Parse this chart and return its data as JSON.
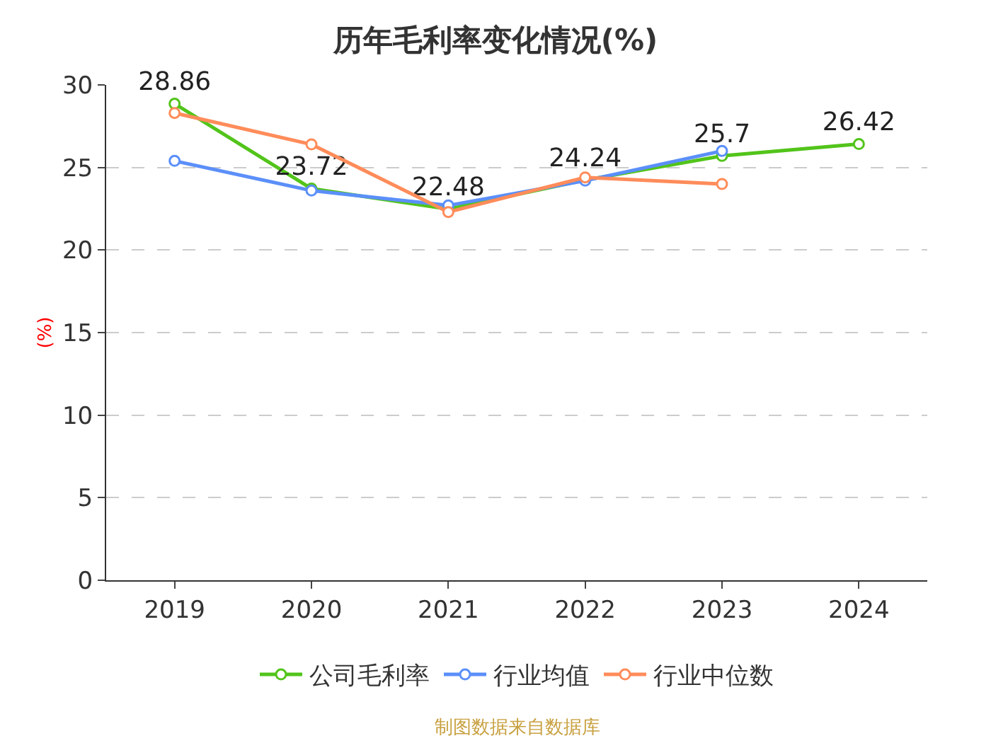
{
  "chart_data": {
    "type": "line",
    "title": "历年毛利率变化情况(%)",
    "ylabel": "(%)",
    "categories": [
      "2019",
      "2020",
      "2021",
      "2022",
      "2023",
      "2024"
    ],
    "series": [
      {
        "name": "公司毛利率",
        "color": "#52c41a",
        "values": [
          28.86,
          23.72,
          22.48,
          24.24,
          25.7,
          26.42
        ],
        "value_labels": [
          "28.86",
          "23.72",
          "22.48",
          "24.24",
          "25.7",
          "26.42"
        ]
      },
      {
        "name": "行业均值",
        "color": "#5b8ff9",
        "values": [
          25.4,
          23.6,
          22.7,
          24.2,
          26.0,
          null
        ]
      },
      {
        "name": "行业中位数",
        "color": "#ff8c5a",
        "values": [
          28.3,
          26.4,
          22.3,
          24.4,
          24.0,
          null
        ]
      }
    ],
    "ylim": [
      0,
      30
    ],
    "yticks": [
      0,
      5,
      10,
      15,
      20,
      25,
      30
    ],
    "grid": "y",
    "legend": "bottom",
    "marker": "circle",
    "line_style": "solid",
    "annotations": [
      "制图数据来自数据库"
    ]
  }
}
